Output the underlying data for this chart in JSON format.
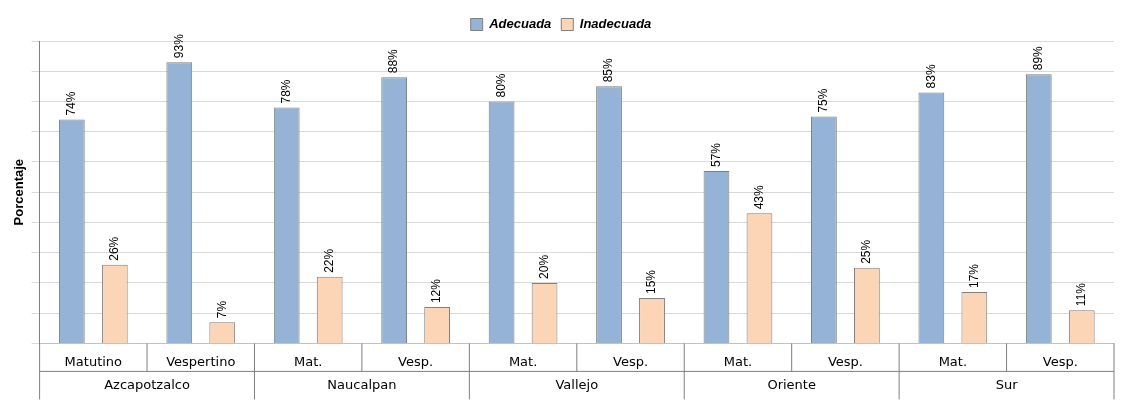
{
  "chart_data": {
    "type": "bar",
    "ylabel": "Porcentaje",
    "categories": [
      "Matutino",
      "Vespertino",
      "Mat.",
      "Vesp.",
      "Mat.",
      "Vesp.",
      "Mat.",
      "Vesp.",
      "Mat.",
      "Vesp."
    ],
    "annotations": [
      "Azcapotzalco",
      "Naucalpan",
      "Vallejo",
      "Oriente",
      "Sur"
    ],
    "series": [
      {
        "name": "Adecuada",
        "color": "#95b3d7",
        "values": [
          74,
          93,
          78,
          88,
          80,
          85,
          57,
          75,
          83,
          89
        ],
        "value_labels": [
          "74%",
          "93%",
          "78%",
          "88%",
          "80%",
          "85%",
          "57%",
          "75%",
          "83%",
          "89%"
        ]
      },
      {
        "name": "Inadecuada",
        "color": "#fbd5b5",
        "values": [
          26,
          7,
          22,
          12,
          20,
          15,
          43,
          25,
          17,
          11
        ],
        "value_labels": [
          "26%",
          "7%",
          "22%",
          "12%",
          "20%",
          "15%",
          "43%",
          "25%",
          "17%",
          "11%"
        ]
      }
    ],
    "ylim": [
      0,
      100
    ],
    "yticks": [
      {
        "value": 0,
        "label": null
      },
      {
        "value": 10,
        "label": null
      },
      {
        "value": 20,
        "label": null
      },
      {
        "value": 30,
        "label": null
      },
      {
        "value": 40,
        "label": null
      },
      {
        "value": 50,
        "label": null
      },
      {
        "value": 60,
        "label": null
      },
      {
        "value": 70,
        "label": null
      },
      {
        "value": 80,
        "label": null
      },
      {
        "value": 90,
        "label": null
      },
      {
        "value": 100,
        "label": null
      }
    ],
    "grid": "y",
    "legend": "top"
  }
}
